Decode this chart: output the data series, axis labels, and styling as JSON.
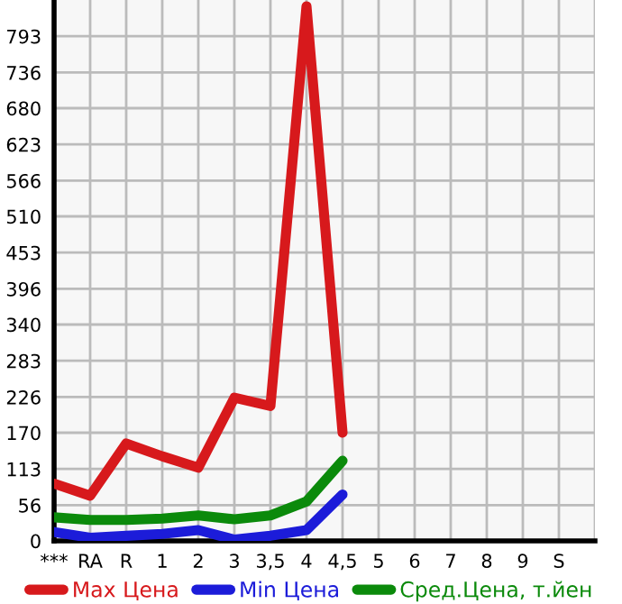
{
  "chart_data": {
    "type": "line",
    "categories": [
      "***",
      "RA",
      "R",
      "1",
      "2",
      "3",
      "3,5",
      "4",
      "4,5",
      "5",
      "6",
      "7",
      "8",
      "9",
      "S"
    ],
    "series": [
      {
        "name": "Max Цена",
        "color": "#d7191c",
        "values": [
          90,
          71,
          153,
          133,
          115,
          225,
          212,
          840,
          170,
          null,
          null,
          null,
          null,
          null,
          null
        ]
      },
      {
        "name": "Min Цена",
        "color": "#1c1cd9",
        "values": [
          14,
          5,
          8,
          11,
          17,
          2,
          8,
          17,
          73,
          null,
          null,
          null,
          null,
          null,
          null
        ]
      },
      {
        "name": "Сред.Цена, т.йен",
        "color": "#0b8a0b",
        "values": [
          37,
          33,
          33,
          35,
          40,
          34,
          40,
          62,
          126,
          null,
          null,
          null,
          null,
          null,
          null
        ]
      }
    ],
    "ylim": [
      0,
      850
    ],
    "yticks": [
      0,
      56,
      113,
      170,
      226,
      283,
      340,
      396,
      453,
      510,
      566,
      623,
      680,
      736,
      793
    ],
    "grid": true,
    "legend": "bottom",
    "marker": "none",
    "line_style": "solid"
  }
}
